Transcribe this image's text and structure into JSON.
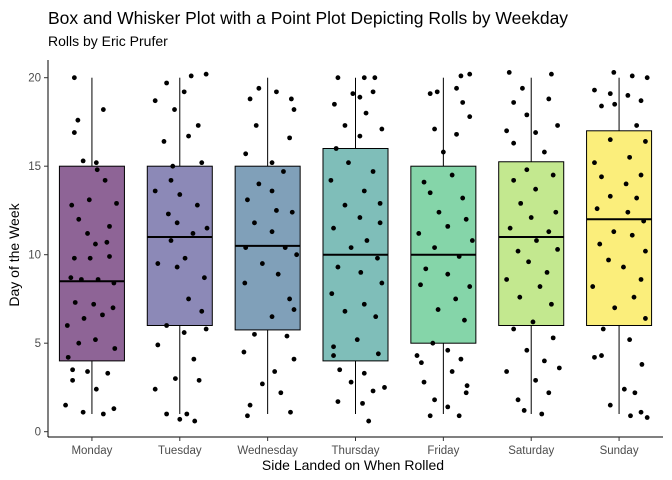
{
  "chart_data": {
    "type": "box",
    "title": "Box and Whisker Plot with a Point Plot Depicting Rolls by Weekday",
    "subtitle": "Rolls by Eric Prufer",
    "xlabel": "Side Landed on When Rolled",
    "ylabel": "Day of the Week",
    "ylim": [
      -0.3,
      21
    ],
    "yticks": [
      0,
      5,
      10,
      15,
      20
    ],
    "grid": false,
    "legend": "none",
    "categories": [
      "Monday",
      "Tuesday",
      "Wednesday",
      "Thursday",
      "Friday",
      "Saturday",
      "Sunday"
    ],
    "colors": [
      "#8e6496",
      "#8c89b7",
      "#80a0b9",
      "#7fbeb9",
      "#85d5a9",
      "#c3e88f",
      "#fbee7b"
    ],
    "boxes": [
      {
        "category": "Monday",
        "whisker_low": 1,
        "q1": 4,
        "median": 8.5,
        "q3": 15,
        "whisker_high": 20
      },
      {
        "category": "Tuesday",
        "whisker_low": 1,
        "q1": 6,
        "median": 11,
        "q3": 15,
        "whisker_high": 20
      },
      {
        "category": "Wednesday",
        "whisker_low": 1,
        "q1": 5.75,
        "median": 10.5,
        "q3": 15,
        "whisker_high": 20
      },
      {
        "category": "Thursday",
        "whisker_low": 1,
        "q1": 4,
        "median": 10,
        "q3": 16,
        "whisker_high": 20
      },
      {
        "category": "Friday",
        "whisker_low": 1,
        "q1": 5,
        "median": 10,
        "q3": 15,
        "whisker_high": 20
      },
      {
        "category": "Saturday",
        "whisker_low": 1,
        "q1": 6,
        "median": 11,
        "q3": 15.25,
        "whisker_high": 20
      },
      {
        "category": "Sunday",
        "whisker_low": 1,
        "q1": 6,
        "median": 12,
        "q3": 17,
        "whisker_high": 20
      }
    ],
    "points": [
      [
        [
          -0.2,
          20
        ],
        [
          -0.16,
          17.6
        ],
        [
          -0.2,
          16.9
        ],
        [
          0.13,
          18.2
        ],
        [
          -0.1,
          15.3
        ],
        [
          0.05,
          15.2
        ],
        [
          -0.03,
          13.1
        ],
        [
          0.15,
          14.2
        ],
        [
          0.28,
          12.9
        ],
        [
          -0.23,
          12.8
        ],
        [
          -0.15,
          12
        ],
        [
          -0.05,
          11.2
        ],
        [
          0.17,
          10.7
        ],
        [
          0.04,
          10.6
        ],
        [
          -0.2,
          9.8
        ],
        [
          -0.02,
          9.8
        ],
        [
          0.2,
          9.9
        ],
        [
          -0.24,
          8.7
        ],
        [
          -0.12,
          8.6
        ],
        [
          0.07,
          8.6
        ],
        [
          0.25,
          8.4
        ],
        [
          -0.19,
          7.3
        ],
        [
          0.02,
          7.2
        ],
        [
          0.24,
          7
        ],
        [
          -0.28,
          6
        ],
        [
          -0.09,
          6.4
        ],
        [
          0.12,
          6.6
        ],
        [
          -0.15,
          5
        ],
        [
          0.04,
          5.2
        ],
        [
          0.26,
          4.7
        ],
        [
          -0.27,
          4.2
        ],
        [
          -0.05,
          3.4
        ],
        [
          0.18,
          3.3
        ],
        [
          -0.22,
          2.9
        ],
        [
          0.05,
          2.4
        ],
        [
          -0.3,
          1.5
        ],
        [
          -0.1,
          1.1
        ],
        [
          0.13,
          1
        ],
        [
          0.25,
          1.3
        ],
        [
          0.06,
          14.8
        ],
        [
          0.2,
          11.6
        ],
        [
          -0.22,
          3.5
        ]
      ],
      [
        [
          -0.15,
          19.7
        ],
        [
          0.13,
          20.1
        ],
        [
          0.3,
          20.2
        ],
        [
          0.05,
          19.2
        ],
        [
          -0.28,
          18.7
        ],
        [
          -0.06,
          18.2
        ],
        [
          0.21,
          17.3
        ],
        [
          -0.18,
          16.4
        ],
        [
          0.1,
          16.7
        ],
        [
          -0.08,
          15
        ],
        [
          0.25,
          15.2
        ],
        [
          -0.28,
          13.6
        ],
        [
          0,
          13.4
        ],
        [
          0.2,
          12.8
        ],
        [
          -0.13,
          12.3
        ],
        [
          0.15,
          11.2
        ],
        [
          0.31,
          11.5
        ],
        [
          -0.1,
          10.8
        ],
        [
          0.06,
          9.8
        ],
        [
          -0.25,
          9.5
        ],
        [
          -0.03,
          9.3
        ],
        [
          0.28,
          8.7
        ],
        [
          0.1,
          7.5
        ],
        [
          0.25,
          6.8
        ],
        [
          -0.15,
          6
        ],
        [
          0.05,
          5.6
        ],
        [
          0.3,
          5.8
        ],
        [
          -0.25,
          4.9
        ],
        [
          0.16,
          4.1
        ],
        [
          -0.05,
          3
        ],
        [
          0.22,
          2.9
        ],
        [
          -0.28,
          2.4
        ],
        [
          -0.15,
          1
        ],
        [
          0,
          0.7
        ],
        [
          0.08,
          1
        ],
        [
          0.17,
          0.6
        ],
        [
          -0.03,
          11.8
        ],
        [
          -0.1,
          14.2
        ]
      ],
      [
        [
          -0.2,
          18.8
        ],
        [
          0.1,
          19.2
        ],
        [
          0.27,
          18.8
        ],
        [
          0.3,
          18.2
        ],
        [
          -0.13,
          17.3
        ],
        [
          0.25,
          16.6
        ],
        [
          -0.25,
          15.7
        ],
        [
          0.05,
          15.2
        ],
        [
          0.18,
          14.7
        ],
        [
          -0.1,
          14
        ],
        [
          -0.23,
          13.1
        ],
        [
          0.1,
          12.5
        ],
        [
          0.28,
          12.4
        ],
        [
          -0.15,
          11.8
        ],
        [
          0.05,
          11.3
        ],
        [
          -0.25,
          10.4
        ],
        [
          0.2,
          10.4
        ],
        [
          0.33,
          10
        ],
        [
          -0.06,
          9.5
        ],
        [
          0.12,
          8.9
        ],
        [
          -0.26,
          8.4
        ],
        [
          0.25,
          7.5
        ],
        [
          0.3,
          6.9
        ],
        [
          0.05,
          6.5
        ],
        [
          -0.15,
          5.5
        ],
        [
          0.22,
          5.4
        ],
        [
          -0.27,
          4.5
        ],
        [
          0.3,
          4.1
        ],
        [
          0.08,
          3.4
        ],
        [
          -0.06,
          2.7
        ],
        [
          0.15,
          2.2
        ],
        [
          -0.2,
          1.5
        ],
        [
          -0.23,
          0.9
        ],
        [
          0.26,
          1.1
        ],
        [
          -0.1,
          19.4
        ],
        [
          0.05,
          13.6
        ]
      ],
      [
        [
          -0.2,
          20
        ],
        [
          0.1,
          20
        ],
        [
          0.22,
          20
        ],
        [
          -0.03,
          19.1
        ],
        [
          0.2,
          19.2
        ],
        [
          -0.24,
          18.5
        ],
        [
          0.05,
          18.9
        ],
        [
          -0.12,
          17.3
        ],
        [
          0.3,
          17.1
        ],
        [
          -0.22,
          16
        ],
        [
          0.05,
          16.7
        ],
        [
          -0.08,
          15.2
        ],
        [
          0.2,
          14.7
        ],
        [
          -0.28,
          14.2
        ],
        [
          0.1,
          13.6
        ],
        [
          -0.12,
          12.8
        ],
        [
          0.28,
          12.9
        ],
        [
          0.05,
          12.1
        ],
        [
          -0.25,
          11.5
        ],
        [
          0.28,
          11.8
        ],
        [
          0.13,
          10.8
        ],
        [
          -0.05,
          10.4
        ],
        [
          0.25,
          9.8
        ],
        [
          -0.2,
          9.3
        ],
        [
          0.06,
          9
        ],
        [
          0.3,
          8.4
        ],
        [
          -0.27,
          7.8
        ],
        [
          0.1,
          7.2
        ],
        [
          -0.12,
          6.8
        ],
        [
          0.23,
          6.5
        ],
        [
          0.02,
          5.2
        ],
        [
          -0.25,
          4.8
        ],
        [
          0.26,
          4.4
        ],
        [
          -0.18,
          3.5
        ],
        [
          0.1,
          3.3
        ],
        [
          -0.05,
          2.8
        ],
        [
          0.2,
          2.3
        ],
        [
          -0.2,
          1.7
        ],
        [
          0.08,
          1.6
        ],
        [
          0.15,
          0.6
        ],
        [
          0.33,
          2.5
        ],
        [
          -0.25,
          4.3
        ],
        [
          0.12,
          18
        ]
      ],
      [
        [
          -0.07,
          19.2
        ],
        [
          0.2,
          20.1
        ],
        [
          0.3,
          20.2
        ],
        [
          -0.15,
          19.1
        ],
        [
          0.15,
          19.4
        ],
        [
          0.22,
          18.6
        ],
        [
          0.3,
          17.8
        ],
        [
          -0.1,
          17.1
        ],
        [
          0.15,
          16.8
        ],
        [
          0,
          15.8
        ],
        [
          -0.22,
          14.1
        ],
        [
          0.1,
          14.5
        ],
        [
          -0.15,
          13.5
        ],
        [
          0.22,
          13.2
        ],
        [
          -0.05,
          12.4
        ],
        [
          0.26,
          12
        ],
        [
          0.05,
          11.6
        ],
        [
          -0.28,
          11.2
        ],
        [
          0.33,
          10.8
        ],
        [
          -0.1,
          10.4
        ],
        [
          0.18,
          9.9
        ],
        [
          -0.2,
          9.2
        ],
        [
          0.05,
          8.9
        ],
        [
          -0.26,
          8.3
        ],
        [
          0.3,
          8.2
        ],
        [
          0.14,
          7.5
        ],
        [
          -0.06,
          6.9
        ],
        [
          0.24,
          6.3
        ],
        [
          -0.12,
          5
        ],
        [
          0.05,
          4.6
        ],
        [
          0.2,
          4.1
        ],
        [
          -0.3,
          4.3
        ],
        [
          0.1,
          3.4
        ],
        [
          -0.22,
          2.8
        ],
        [
          0.26,
          2.2
        ],
        [
          -0.1,
          1.8
        ],
        [
          -0.15,
          0.9
        ],
        [
          0.05,
          1.4
        ],
        [
          0.18,
          0.9
        ],
        [
          0.27,
          2.6
        ],
        [
          -0.25,
          3.9
        ]
      ],
      [
        [
          -0.25,
          20.3
        ],
        [
          -0.1,
          19.4
        ],
        [
          0.23,
          20.2
        ],
        [
          -0.2,
          18.6
        ],
        [
          0.2,
          18.8
        ],
        [
          -0.05,
          17.9
        ],
        [
          -0.28,
          17
        ],
        [
          0.05,
          16.9
        ],
        [
          0.3,
          17.3
        ],
        [
          -0.2,
          16.3
        ],
        [
          0.15,
          15.8
        ],
        [
          -0.05,
          14.8
        ],
        [
          0.25,
          14.5
        ],
        [
          -0.2,
          14.2
        ],
        [
          0.05,
          13.7
        ],
        [
          -0.12,
          12.9
        ],
        [
          0.28,
          12.4
        ],
        [
          0,
          12.1
        ],
        [
          -0.24,
          11.5
        ],
        [
          0.2,
          11.3
        ],
        [
          0.06,
          10.8
        ],
        [
          -0.15,
          10.2
        ],
        [
          0.3,
          10.3
        ],
        [
          -0.03,
          9.6
        ],
        [
          0.18,
          9
        ],
        [
          -0.28,
          8.6
        ],
        [
          0.1,
          8.2
        ],
        [
          -0.13,
          7.6
        ],
        [
          0.23,
          7.2
        ],
        [
          0.02,
          6.2
        ],
        [
          -0.2,
          5.8
        ],
        [
          0.25,
          5.3
        ],
        [
          -0.05,
          4.6
        ],
        [
          0.15,
          4
        ],
        [
          -0.28,
          3.4
        ],
        [
          0.05,
          2.9
        ],
        [
          0.2,
          2.2
        ],
        [
          -0.15,
          1.8
        ],
        [
          -0.08,
          1.2
        ],
        [
          0.12,
          1
        ],
        [
          0.32,
          3.6
        ]
      ],
      [
        [
          -0.06,
          20.3
        ],
        [
          0.15,
          20.1
        ],
        [
          0.32,
          20
        ],
        [
          -0.28,
          19.3
        ],
        [
          -0.1,
          19.1
        ],
        [
          0.1,
          19
        ],
        [
          0.25,
          18.7
        ],
        [
          -0.2,
          18.4
        ],
        [
          -0.05,
          18.5
        ],
        [
          0.2,
          17.3
        ],
        [
          -0.1,
          16.5
        ],
        [
          0.3,
          16.4
        ],
        [
          -0.28,
          15.2
        ],
        [
          0.12,
          15.5
        ],
        [
          -0.2,
          14.4
        ],
        [
          0.08,
          14
        ],
        [
          0.25,
          14.5
        ],
        [
          -0.1,
          13.3
        ],
        [
          0.2,
          13.2
        ],
        [
          -0.25,
          12.6
        ],
        [
          0.1,
          12.4
        ],
        [
          0.28,
          11.9
        ],
        [
          -0.06,
          11.3
        ],
        [
          0.15,
          11.1
        ],
        [
          -0.22,
          10.6
        ],
        [
          0.3,
          10.2
        ],
        [
          -0.12,
          9.7
        ],
        [
          0.05,
          9.3
        ],
        [
          0.25,
          8.6
        ],
        [
          -0.3,
          8.2
        ],
        [
          0.17,
          7.6
        ],
        [
          -0.05,
          7
        ],
        [
          0.3,
          6.4
        ],
        [
          -0.18,
          5.8
        ],
        [
          0.12,
          5.2
        ],
        [
          -0.28,
          4.2
        ],
        [
          -0.2,
          4.3
        ],
        [
          0.26,
          3.8
        ],
        [
          0.06,
          2.4
        ],
        [
          0.18,
          2.2
        ],
        [
          -0.1,
          1.5
        ],
        [
          0.13,
          0.9
        ],
        [
          0.25,
          1.1
        ],
        [
          0.32,
          0.8
        ]
      ]
    ]
  }
}
